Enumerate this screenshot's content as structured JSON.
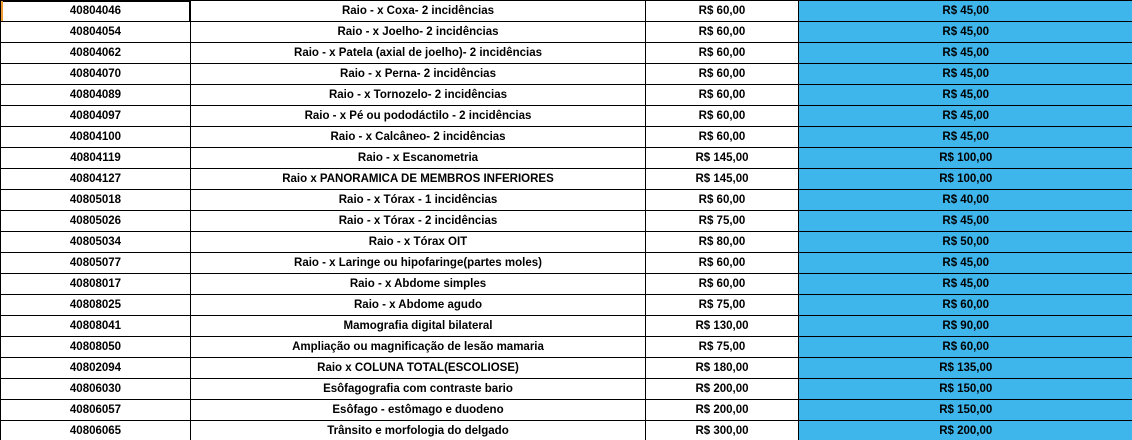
{
  "colors": {
    "highlight_fill": "#3EB5EB",
    "price_red": "#FF0000",
    "grid_line": "#000000",
    "selection_accent": "#EE9C31"
  },
  "selection": {
    "selected_row_index": 0,
    "selected_cell_value": "40804046"
  },
  "table": {
    "rows": [
      {
        "code": "40804046",
        "procedure": "Raio - x Coxa- 2 incidências",
        "price1": "R$ 60,00",
        "price2": "R$ 45,00"
      },
      {
        "code": "40804054",
        "procedure": "Raio - x Joelho- 2 incidências",
        "price1": "R$ 60,00",
        "price2": "R$ 45,00"
      },
      {
        "code": "40804062",
        "procedure": "Raio - x Patela (axial de joelho)- 2 incidências",
        "price1": "R$ 60,00",
        "price2": "R$ 45,00"
      },
      {
        "code": "40804070",
        "procedure": "Raio - x Perna- 2 incidências",
        "price1": "R$ 60,00",
        "price2": "R$ 45,00"
      },
      {
        "code": "40804089",
        "procedure": "Raio - x Tornozelo- 2 incidências",
        "price1": "R$ 60,00",
        "price2": "R$ 45,00"
      },
      {
        "code": "40804097",
        "procedure": "Raio - x Pé ou pododáctilo - 2 incidências",
        "price1": "R$ 60,00",
        "price2": "R$ 45,00"
      },
      {
        "code": "40804100",
        "procedure": "Raio - x Calcâneo- 2 incidências",
        "price1": "R$ 60,00",
        "price2": "R$ 45,00"
      },
      {
        "code": "40804119",
        "procedure": "Raio - x Escanometria",
        "price1": "R$ 145,00",
        "price2": "R$ 100,00"
      },
      {
        "code": "40804127",
        "procedure": "Raio x PANORAMICA DE MEMBROS INFERIORES",
        "price1": "R$ 145,00",
        "price2": "R$ 100,00"
      },
      {
        "code": "40805018",
        "procedure": "Raio - x Tórax - 1 incidências",
        "price1": "R$ 60,00",
        "price2": "R$ 40,00"
      },
      {
        "code": "40805026",
        "procedure": "Raio - x Tórax - 2 incidências",
        "price1": "R$ 75,00",
        "price2": "R$ 45,00"
      },
      {
        "code": "40805034",
        "procedure": "Raio - x Tórax  OIT",
        "price1": "R$ 80,00",
        "price2": "R$ 50,00"
      },
      {
        "code": "40805077",
        "procedure": "Raio - x Laringe ou hipofaringe(partes moles)",
        "price1": "R$ 60,00",
        "price2": "R$ 45,00"
      },
      {
        "code": "40808017",
        "procedure": "Raio - x Abdome simples",
        "price1": "R$ 60,00",
        "price2": "R$ 45,00"
      },
      {
        "code": "40808025",
        "procedure": "Raio - x Abdome agudo",
        "price1": "R$ 75,00",
        "price2": "R$ 60,00"
      },
      {
        "code": "40808041",
        "procedure": "Mamografia digital bilateral",
        "price1": "R$ 130,00",
        "price2": "R$ 90,00"
      },
      {
        "code": "40808050",
        "procedure": "Ampliação ou magnificação de lesão mamaria",
        "price1": "R$ 75,00",
        "price2": "R$ 60,00"
      },
      {
        "code": "40802094",
        "procedure": "Raio x COLUNA TOTAL(ESCOLIOSE)",
        "price1": "R$ 180,00",
        "price2": "R$ 135,00"
      },
      {
        "code": "40806030",
        "procedure": "Esôfagografia com contraste bario",
        "price1": "R$ 200,00",
        "price2": "R$ 150,00"
      },
      {
        "code": "40806057",
        "procedure": "Esôfago - estômago e duodeno",
        "price1": "R$ 200,00",
        "price2": "R$ 150,00"
      },
      {
        "code": "40806065",
        "procedure": "Trânsito e morfologia do delgado",
        "price1": "R$ 300,00",
        "price2": "R$ 200,00"
      }
    ]
  }
}
